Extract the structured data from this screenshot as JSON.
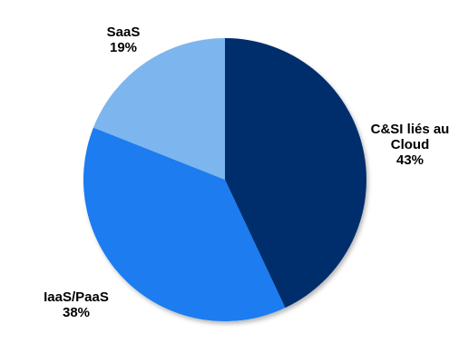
{
  "chart_data": {
    "type": "pie",
    "title": "",
    "start_angle_deg": 0,
    "direction": "clockwise",
    "slices": [
      {
        "label_lines": [
          "C&SI liés au",
          "Cloud"
        ],
        "value": 43,
        "value_label": "43%",
        "color": "#002F6C"
      },
      {
        "label_lines": [
          "IaaS/PaaS"
        ],
        "value": 38,
        "value_label": "38%",
        "color": "#1E7BF0"
      },
      {
        "label_lines": [
          "SaaS"
        ],
        "value": 19,
        "value_label": "19%",
        "color": "#7DB5EE"
      }
    ]
  }
}
